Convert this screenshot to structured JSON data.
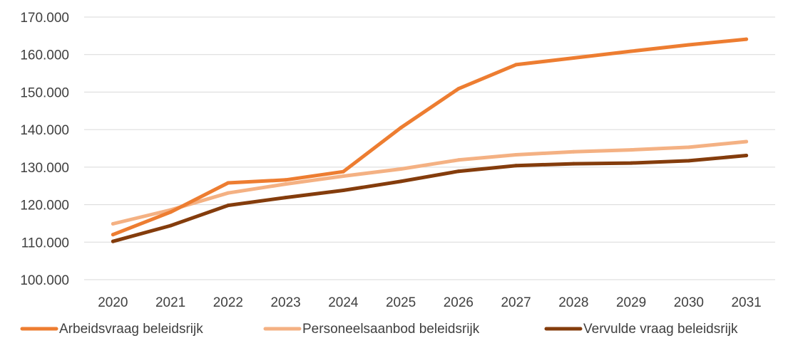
{
  "chart_data": {
    "type": "line",
    "categories": [
      "2020",
      "2021",
      "2022",
      "2023",
      "2024",
      "2025",
      "2026",
      "2027",
      "2028",
      "2029",
      "2030",
      "2031"
    ],
    "series": [
      {
        "name": "Arbeidsvraag beleidsrijk",
        "color": "#ed7d31",
        "values": [
          112000,
          118000,
          125800,
          126600,
          128800,
          140500,
          150900,
          157300,
          159100,
          160900,
          162600,
          164100
        ]
      },
      {
        "name": "Personeelsaanbod beleidsrijk",
        "color": "#f4b183",
        "values": [
          114900,
          118600,
          123100,
          125500,
          127600,
          129500,
          131900,
          133300,
          134100,
          134600,
          135300,
          136800
        ]
      },
      {
        "name": "Vervulde vraag beleidsrijk",
        "color": "#843c0c",
        "values": [
          110200,
          114400,
          119800,
          121900,
          123800,
          126200,
          128900,
          130400,
          130900,
          131100,
          131700,
          133100
        ]
      }
    ],
    "ylim": [
      100000,
      170000
    ],
    "yticks": [
      100000,
      110000,
      120000,
      130000,
      140000,
      150000,
      160000,
      170000
    ],
    "ytick_labels": [
      "100.000",
      "110.000",
      "120.000",
      "130.000",
      "140.000",
      "150.000",
      "160.000",
      "170.000"
    ],
    "grid": true,
    "legend_position": "bottom",
    "title": "",
    "xlabel": "",
    "ylabel": ""
  }
}
